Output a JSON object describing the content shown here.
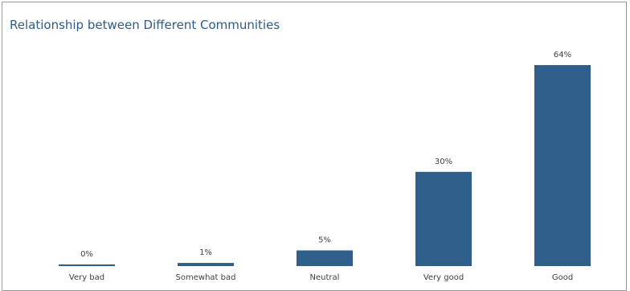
{
  "chart_data": {
    "type": "bar",
    "title": "Relationship between Different Communities",
    "categories": [
      "Very bad",
      "Somewhat bad",
      "Neutral",
      "Very good",
      "Good"
    ],
    "values": [
      0,
      1,
      5,
      30,
      64
    ],
    "value_labels": [
      "0%",
      "1%",
      "5%",
      "30%",
      "64%"
    ],
    "xlabel": "",
    "ylabel": "",
    "ylim": [
      0,
      64
    ],
    "grid": false,
    "legend": "none",
    "bar_color": "#2e5f8a"
  }
}
